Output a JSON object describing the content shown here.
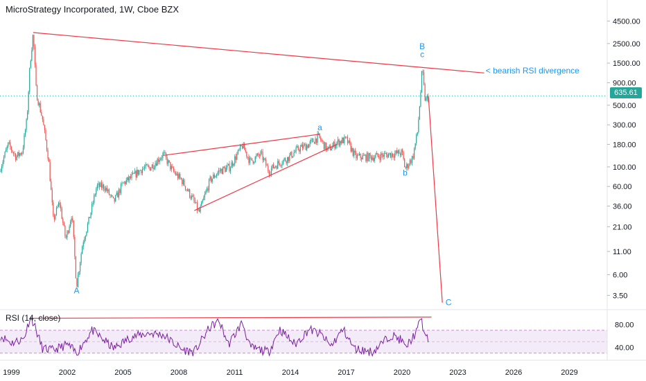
{
  "chart_data": [
    {
      "type": "candlestick",
      "title": "MicroStrategy Incorporated, 1W, Cboe BZX",
      "timeframe": "1W",
      "exchange": "Cboe BZX",
      "yscale": "log",
      "ylim": [
        2.5,
        6500
      ],
      "y_ticks": [
        "4500.00",
        "2500.00",
        "1500.00",
        "900.00",
        "500.00",
        "300.00",
        "180.00",
        "100.00",
        "60.00",
        "36.00",
        "21.00",
        "11.00",
        "6.00",
        "3.50"
      ],
      "x_ticks": [
        "1999",
        "2002",
        "2005",
        "2008",
        "2011",
        "2014",
        "2017",
        "2020",
        "2023",
        "2026",
        "2029"
      ],
      "last_price": "635.61",
      "colors": {
        "up": "#26a69a",
        "down": "#ef5350",
        "annotation": "#2196f3",
        "trendline": "#f23645"
      },
      "approx_path": [
        {
          "date": "1998-06",
          "price": 100
        },
        {
          "date": "1998-11",
          "price": 180
        },
        {
          "date": "1999-04",
          "price": 130
        },
        {
          "date": "1999-08",
          "price": 150
        },
        {
          "date": "1999-11",
          "price": 350
        },
        {
          "date": "2000-01",
          "price": 1500
        },
        {
          "date": "2000-03",
          "price": 3300
        },
        {
          "date": "2000-05",
          "price": 700
        },
        {
          "date": "2000-09",
          "price": 350
        },
        {
          "date": "2001-01",
          "price": 120
        },
        {
          "date": "2001-04",
          "price": 25
        },
        {
          "date": "2001-08",
          "price": 40
        },
        {
          "date": "2001-12",
          "price": 15
        },
        {
          "date": "2002-04",
          "price": 30
        },
        {
          "date": "2002-07",
          "price": 4.5
        },
        {
          "date": "2002-11",
          "price": 14
        },
        {
          "date": "2003-03",
          "price": 25
        },
        {
          "date": "2003-08",
          "price": 60
        },
        {
          "date": "2004-01",
          "price": 60
        },
        {
          "date": "2004-07",
          "price": 40
        },
        {
          "date": "2005-01",
          "price": 65
        },
        {
          "date": "2005-06",
          "price": 75
        },
        {
          "date": "2006-01",
          "price": 95
        },
        {
          "date": "2006-07",
          "price": 100
        },
        {
          "date": "2007-03",
          "price": 140
        },
        {
          "date": "2007-09",
          "price": 90
        },
        {
          "date": "2008-03",
          "price": 70
        },
        {
          "date": "2008-11",
          "price": 40
        },
        {
          "date": "2009-02",
          "price": 30
        },
        {
          "date": "2009-09",
          "price": 70
        },
        {
          "date": "2010-03",
          "price": 90
        },
        {
          "date": "2010-10",
          "price": 100
        },
        {
          "date": "2011-06",
          "price": 175
        },
        {
          "date": "2011-11",
          "price": 115
        },
        {
          "date": "2012-06",
          "price": 140
        },
        {
          "date": "2012-11",
          "price": 90
        },
        {
          "date": "2013-05",
          "price": 110
        },
        {
          "date": "2013-11",
          "price": 125
        },
        {
          "date": "2014-06",
          "price": 160
        },
        {
          "date": "2015-01",
          "price": 180
        },
        {
          "date": "2015-07",
          "price": 220
        },
        {
          "date": "2016-01",
          "price": 155
        },
        {
          "date": "2016-07",
          "price": 190
        },
        {
          "date": "2017-01",
          "price": 205
        },
        {
          "date": "2017-07",
          "price": 130
        },
        {
          "date": "2018-06",
          "price": 130
        },
        {
          "date": "2019-06",
          "price": 140
        },
        {
          "date": "2020-01",
          "price": 145
        },
        {
          "date": "2020-03",
          "price": 95
        },
        {
          "date": "2020-08",
          "price": 130
        },
        {
          "date": "2020-11",
          "price": 250
        },
        {
          "date": "2021-01",
          "price": 700
        },
        {
          "date": "2021-02",
          "price": 1300
        },
        {
          "date": "2021-04",
          "price": 550
        },
        {
          "date": "2021-06",
          "price": 635.61
        }
      ],
      "trendlines": [
        {
          "from": {
            "date": "2000-03",
            "price": 3330
          },
          "to": {
            "date": "2024-06",
            "price": 1160
          }
        },
        {
          "from": {
            "date": "2007-03",
            "price": 135
          },
          "to": {
            "date": "2015-08",
            "price": 235
          }
        },
        {
          "from": {
            "date": "2008-11",
            "price": 32
          },
          "to": {
            "date": "2016-07",
            "price": 180
          }
        },
        {
          "from": {
            "date": "2021-06",
            "price": 635.61
          },
          "to": {
            "date": "2022-03",
            "price": 2.9
          }
        }
      ],
      "wave_labels": [
        {
          "text": "A",
          "date": "2002-07",
          "price": 3.7
        },
        {
          "text": "a",
          "date": "2015-08",
          "price": 260
        },
        {
          "text": "b",
          "date": "2020-03",
          "price": 80
        },
        {
          "text": "B",
          "date": "2021-02",
          "price": 2150
        },
        {
          "text": "c",
          "date": "2021-02",
          "price": 1750
        },
        {
          "text": "C",
          "date": "2022-07",
          "price": 2.7
        }
      ],
      "annotations": [
        {
          "text": "< bearish RSI divergence",
          "date": "2024-07",
          "price": 1150
        }
      ]
    },
    {
      "type": "line",
      "title": "RSI (14, close)",
      "ylim": [
        20,
        100
      ],
      "y_ticks": [
        "80.00",
        "40.00"
      ],
      "bands": [
        30,
        70
      ],
      "color": "#7b1fa2",
      "approx_path": [
        {
          "date": "1998-06",
          "value": 60
        },
        {
          "date": "1999-01",
          "value": 48
        },
        {
          "date": "1999-09",
          "value": 55
        },
        {
          "date": "2000-01",
          "value": 92
        },
        {
          "date": "2000-03",
          "value": 85
        },
        {
          "date": "2000-09",
          "value": 38
        },
        {
          "date": "2001-04",
          "value": 35
        },
        {
          "date": "2002-01",
          "value": 45
        },
        {
          "date": "2002-07",
          "value": 30
        },
        {
          "date": "2003-05",
          "value": 70
        },
        {
          "date": "2004-07",
          "value": 38
        },
        {
          "date": "2005-06",
          "value": 58
        },
        {
          "date": "2006-06",
          "value": 65
        },
        {
          "date": "2007-03",
          "value": 62
        },
        {
          "date": "2008-03",
          "value": 36
        },
        {
          "date": "2008-11",
          "value": 32
        },
        {
          "date": "2009-09",
          "value": 75
        },
        {
          "date": "2010-03",
          "value": 86
        },
        {
          "date": "2010-09",
          "value": 45
        },
        {
          "date": "2011-06",
          "value": 84
        },
        {
          "date": "2011-11",
          "value": 40
        },
        {
          "date": "2012-11",
          "value": 32
        },
        {
          "date": "2013-06",
          "value": 72
        },
        {
          "date": "2014-04",
          "value": 45
        },
        {
          "date": "2015-01",
          "value": 72
        },
        {
          "date": "2015-09",
          "value": 62
        },
        {
          "date": "2016-03",
          "value": 42
        },
        {
          "date": "2016-11",
          "value": 72
        },
        {
          "date": "2017-06",
          "value": 38
        },
        {
          "date": "2018-06",
          "value": 32
        },
        {
          "date": "2019-06",
          "value": 62
        },
        {
          "date": "2020-01",
          "value": 52
        },
        {
          "date": "2020-03",
          "value": 38
        },
        {
          "date": "2020-11",
          "value": 70
        },
        {
          "date": "2021-01",
          "value": 94
        },
        {
          "date": "2021-04",
          "value": 58
        },
        {
          "date": "2021-06",
          "value": 52
        }
      ],
      "trendlines": [
        {
          "from": {
            "date": "2000-01",
            "value": 91
          },
          "to": {
            "date": "2021-08",
            "value": 93
          }
        }
      ]
    }
  ]
}
